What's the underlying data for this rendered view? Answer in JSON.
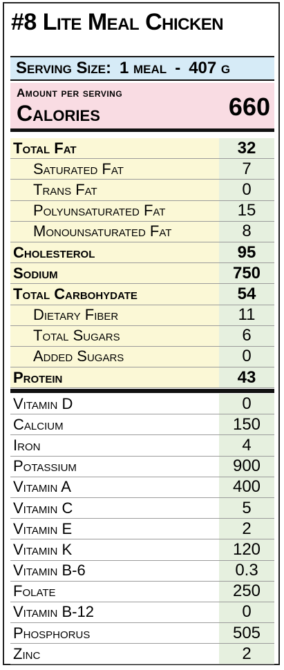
{
  "colors": {
    "serving_bg": "#d6ebf7",
    "calories_bg": "#f9dce3",
    "nutrient_label_bg": "#fbf8d6",
    "value_bg": "#e6f0df",
    "border": "#111111"
  },
  "title": "#8 Lite Meal Chicken",
  "serving": {
    "label": "Serving Size:",
    "amount": "1 meal",
    "dash": "-",
    "grams": "407 g"
  },
  "calories": {
    "amount_label": "Amount per serving",
    "label": "Calories",
    "value": "660"
  },
  "nutrients": [
    {
      "label": "Total Fat",
      "value": "32",
      "bold": true,
      "indent": false
    },
    {
      "label": "Saturated Fat",
      "value": "7",
      "bold": false,
      "indent": true
    },
    {
      "label": "Trans Fat",
      "value": "0",
      "bold": false,
      "indent": true
    },
    {
      "label": "Polyunsaturated Fat",
      "value": "15",
      "bold": false,
      "indent": true
    },
    {
      "label": "Monounsaturated Fat",
      "value": "8",
      "bold": false,
      "indent": true
    },
    {
      "label": "Cholesterol",
      "value": "95",
      "bold": true,
      "indent": false
    },
    {
      "label": "Sodium",
      "value": "750",
      "bold": true,
      "indent": false
    },
    {
      "label": "Total Carbohydate",
      "value": "54",
      "bold": true,
      "indent": false
    },
    {
      "label": "Dietary Fiber",
      "value": "11",
      "bold": false,
      "indent": true
    },
    {
      "label": "Total Sugars",
      "value": "6",
      "bold": false,
      "indent": true
    },
    {
      "label": "Added Sugars",
      "value": "0",
      "bold": false,
      "indent": true
    },
    {
      "label": "Protein",
      "value": "43",
      "bold": true,
      "indent": false
    }
  ],
  "vitamins": [
    {
      "label": "Vitamin D",
      "value": "0"
    },
    {
      "label": "Calcium",
      "value": "150"
    },
    {
      "label": "Iron",
      "value": "4"
    },
    {
      "label": "Potassium",
      "value": "900"
    },
    {
      "label": "Vitamin A",
      "value": "400"
    },
    {
      "label": "Vitamin C",
      "value": "5"
    },
    {
      "label": "Vitamin E",
      "value": "2"
    },
    {
      "label": "Vitamin K",
      "value": "120"
    },
    {
      "label": "Vitamin B-6",
      "value": "0.3"
    },
    {
      "label": "Folate",
      "value": "250"
    },
    {
      "label": "Vitamin B-12",
      "value": "0"
    },
    {
      "label": "Phosphorus",
      "value": "505"
    },
    {
      "label": "Zinc",
      "value": "2"
    }
  ]
}
